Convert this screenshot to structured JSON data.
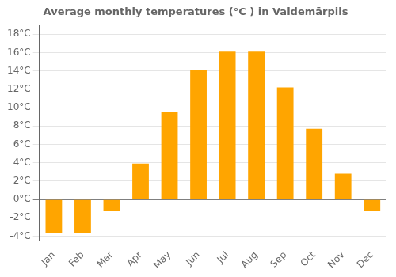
{
  "chart_data": {
    "type": "bar",
    "title": "Average monthly temperatures (°C ) in Valdemārpils",
    "categories": [
      "Jan",
      "Feb",
      "Mar",
      "Apr",
      "May",
      "Jun",
      "Jul",
      "Aug",
      "Sep",
      "Oct",
      "Nov",
      "Dec"
    ],
    "values": [
      -3.7,
      -3.7,
      -1.2,
      3.9,
      9.5,
      14.1,
      16.1,
      16.1,
      12.2,
      7.7,
      2.8,
      -1.2
    ],
    "color": "#FFA500",
    "ylim": [
      -4.5,
      19.0
    ],
    "yticks": [
      {
        "value": -4,
        "label": "-4°C"
      },
      {
        "value": -2,
        "label": "-2°C"
      },
      {
        "value": 0,
        "label": "0°C"
      },
      {
        "value": 2,
        "label": "2°C"
      },
      {
        "value": 4,
        "label": "4°C"
      },
      {
        "value": 6,
        "label": "6°C"
      },
      {
        "value": 8,
        "label": "8°C"
      },
      {
        "value": 10,
        "label": "10°C"
      },
      {
        "value": 12,
        "label": "12°C"
      },
      {
        "value": 14,
        "label": "14°C"
      },
      {
        "value": 16,
        "label": "16°C"
      },
      {
        "value": 18,
        "label": "18°C"
      }
    ],
    "grid": true
  }
}
